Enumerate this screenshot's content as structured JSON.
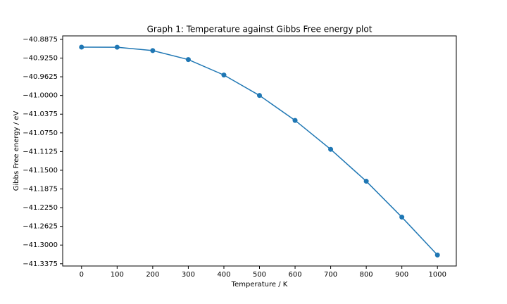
{
  "chart_data": {
    "type": "line",
    "title": "Graph 1: Temperature against Gibbs Free energy plot",
    "x_label": "Temperature / K",
    "y_label": "Gibbs Free energy / eV",
    "x": [
      0,
      100,
      200,
      300,
      400,
      500,
      600,
      700,
      800,
      900,
      1000
    ],
    "series": [
      {
        "name": "Gibbs Free energy",
        "color": "#1f77b4",
        "values": [
          -40.903,
          -40.9032,
          -40.91,
          -40.928,
          -40.959,
          -41.0,
          -41.05,
          -41.108,
          -41.172,
          -41.244,
          -41.32
        ]
      }
    ],
    "xlim": [
      -53,
      1053
    ],
    "ylim": [
      -41.342,
      -40.8805
    ],
    "xticks": [
      0,
      100,
      200,
      300,
      400,
      500,
      600,
      700,
      800,
      900,
      1000
    ],
    "yticks": [
      {
        "value": -40.8875,
        "label": "−40.8875"
      },
      {
        "value": -40.925,
        "label": "−40.9250"
      },
      {
        "value": -40.9625,
        "label": "−40.9625"
      },
      {
        "value": -41.0,
        "label": "−41.0000"
      },
      {
        "value": -41.0375,
        "label": "−41.0375"
      },
      {
        "value": -41.075,
        "label": "−41.0750"
      },
      {
        "value": -41.1125,
        "label": "−41.1125"
      },
      {
        "value": -41.15,
        "label": "−41.1500"
      },
      {
        "value": -41.1875,
        "label": "−41.1875"
      },
      {
        "value": -41.225,
        "label": "−41.2250"
      },
      {
        "value": -41.2625,
        "label": "−41.2625"
      },
      {
        "value": -41.3,
        "label": "−41.3000"
      },
      {
        "value": -41.3375,
        "label": "−41.3375"
      }
    ],
    "grid": false
  }
}
